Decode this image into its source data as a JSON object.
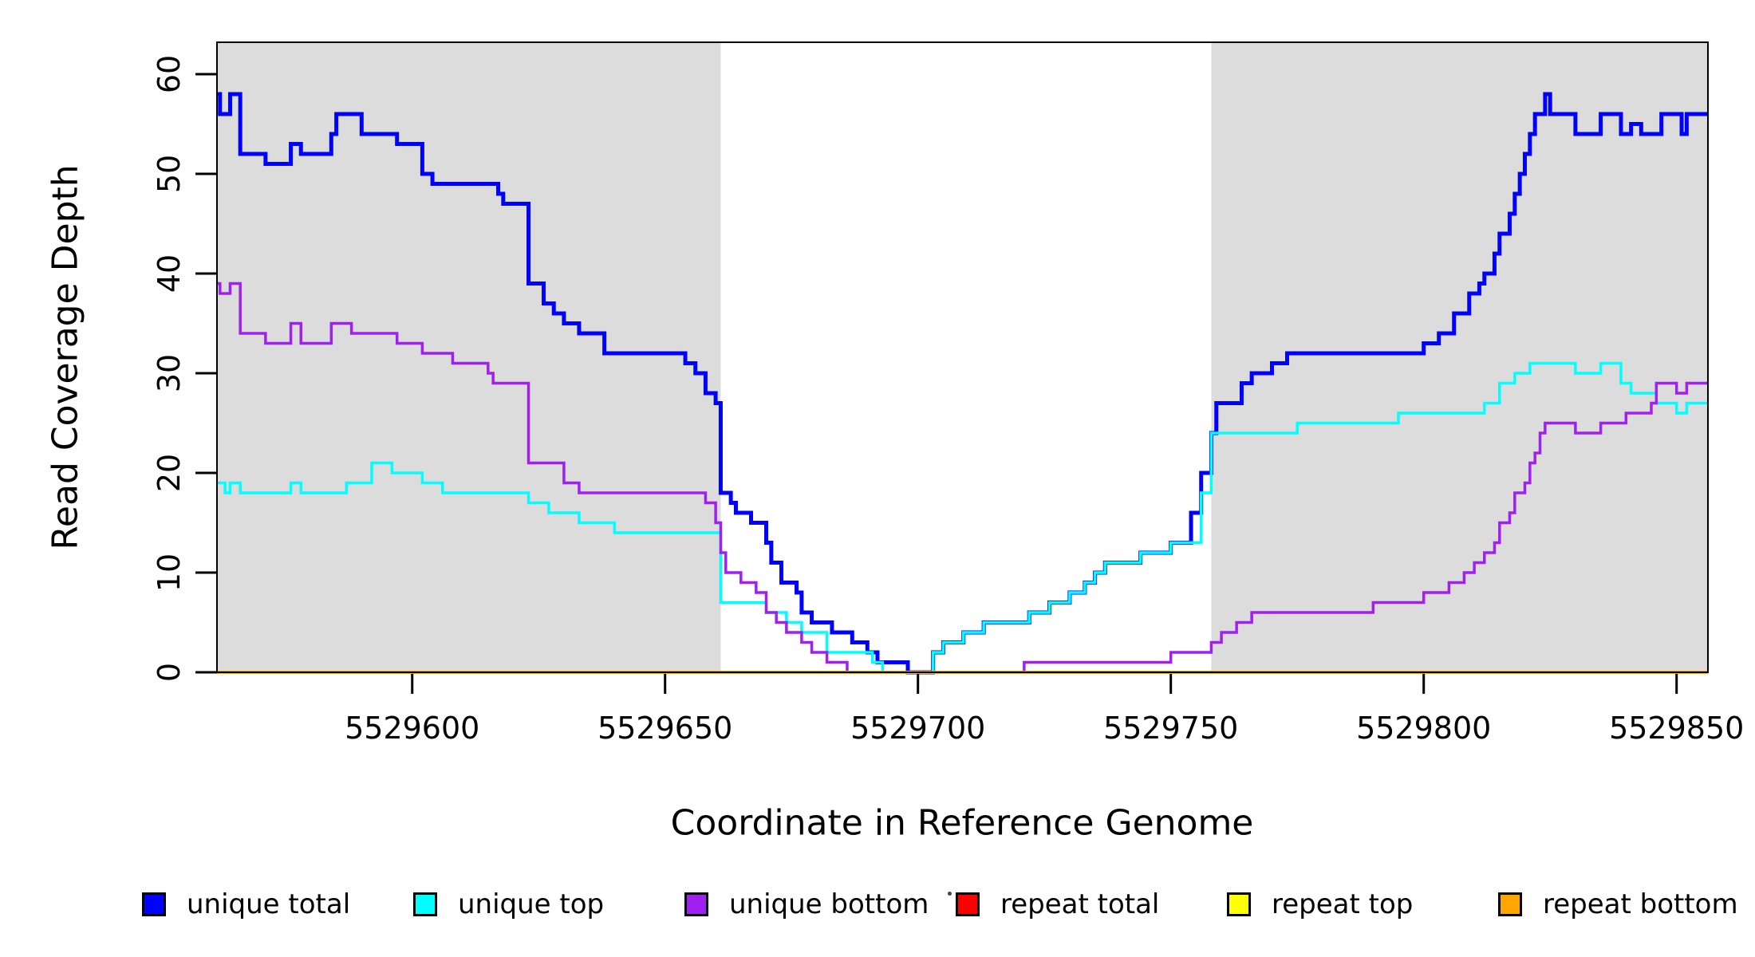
{
  "figure": {
    "background": "#FFFFFF",
    "highlight_color": "#DCDCDC",
    "axis_color": "#000000"
  },
  "chart_data": {
    "type": "line",
    "line_style": "step-after",
    "title": "",
    "xlabel": "Coordinate in Reference Genome",
    "ylabel": "Read Coverage Depth",
    "xlim": [
      5529561.4,
      5529856.2
    ],
    "ylim": [
      0,
      63.2
    ],
    "grid": false,
    "legend_position": "bottom-horizontal",
    "x_ticks": [
      {
        "value": 5529600,
        "label": "5529600"
      },
      {
        "value": 5529650,
        "label": "5529650"
      },
      {
        "value": 5529700,
        "label": "5529700"
      },
      {
        "value": 5529750,
        "label": "5529750"
      },
      {
        "value": 5529800,
        "label": "5529800"
      },
      {
        "value": 5529850,
        "label": "5529850"
      }
    ],
    "y_ticks": [
      {
        "value": 0,
        "label": "0"
      },
      {
        "value": 10,
        "label": "10"
      },
      {
        "value": 20,
        "label": "20"
      },
      {
        "value": 30,
        "label": "30"
      },
      {
        "value": 40,
        "label": "40"
      },
      {
        "value": 50,
        "label": "50"
      },
      {
        "value": 60,
        "label": "60"
      }
    ],
    "highlight_regions": [
      {
        "x0": 5529561.4,
        "x1": 5529661
      },
      {
        "x0": 5529758,
        "x1": 5529856.2
      }
    ],
    "series": [
      {
        "name": "unique total",
        "color": "#0000FF",
        "width": 5,
        "points": [
          [
            5529561,
            58
          ],
          [
            5529562,
            56
          ],
          [
            5529564,
            58
          ],
          [
            5529566,
            52
          ],
          [
            5529571,
            51
          ],
          [
            5529576,
            53
          ],
          [
            5529578,
            52
          ],
          [
            5529584,
            54
          ],
          [
            5529585,
            56
          ],
          [
            5529590,
            54
          ],
          [
            5529597,
            53
          ],
          [
            5529602,
            50
          ],
          [
            5529604,
            49
          ],
          [
            5529617,
            48
          ],
          [
            5529618,
            47
          ],
          [
            5529623,
            39
          ],
          [
            5529626,
            37
          ],
          [
            5529628,
            36
          ],
          [
            5529630,
            35
          ],
          [
            5529633,
            34
          ],
          [
            5529638,
            32
          ],
          [
            5529654,
            31
          ],
          [
            5529656,
            30
          ],
          [
            5529658,
            28
          ],
          [
            5529660,
            27
          ],
          [
            5529661,
            18
          ],
          [
            5529663,
            17
          ],
          [
            5529664,
            16
          ],
          [
            5529667,
            15
          ],
          [
            5529670,
            13
          ],
          [
            5529671,
            11
          ],
          [
            5529673,
            9
          ],
          [
            5529676,
            8
          ],
          [
            5529677,
            6
          ],
          [
            5529679,
            5
          ],
          [
            5529683,
            4
          ],
          [
            5529687,
            3
          ],
          [
            5529690,
            2
          ],
          [
            5529692,
            1
          ],
          [
            5529698,
            0
          ],
          [
            5529703,
            2
          ],
          [
            5529705,
            3
          ],
          [
            5529709,
            4
          ],
          [
            5529713,
            5
          ],
          [
            5529722,
            6
          ],
          [
            5529726,
            7
          ],
          [
            5529730,
            8
          ],
          [
            5529733,
            9
          ],
          [
            5529735,
            10
          ],
          [
            5529737,
            11
          ],
          [
            5529744,
            12
          ],
          [
            5529750,
            13
          ],
          [
            5529754,
            16
          ],
          [
            5529756,
            20
          ],
          [
            5529758,
            24
          ],
          [
            5529759,
            27
          ],
          [
            5529764,
            29
          ],
          [
            5529766,
            30
          ],
          [
            5529770,
            31
          ],
          [
            5529773,
            32
          ],
          [
            5529800,
            33
          ],
          [
            5529803,
            34
          ],
          [
            5529806,
            36
          ],
          [
            5529809,
            38
          ],
          [
            5529811,
            39
          ],
          [
            5529812,
            40
          ],
          [
            5529814,
            42
          ],
          [
            5529815,
            44
          ],
          [
            5529817,
            46
          ],
          [
            5529818,
            48
          ],
          [
            5529819,
            50
          ],
          [
            5529820,
            52
          ],
          [
            5529821,
            54
          ],
          [
            5529822,
            56
          ],
          [
            5529824,
            58
          ],
          [
            5529825,
            56
          ],
          [
            5529830,
            54
          ],
          [
            5529835,
            56
          ],
          [
            5529839,
            54
          ],
          [
            5529841,
            55
          ],
          [
            5529843,
            54
          ],
          [
            5529847,
            56
          ],
          [
            5529851,
            54
          ],
          [
            5529852,
            56
          ]
        ]
      },
      {
        "name": "unique top",
        "color": "#00FFFF",
        "width": 3.5,
        "points": [
          [
            5529561,
            19
          ],
          [
            5529563,
            18
          ],
          [
            5529564,
            19
          ],
          [
            5529566,
            18
          ],
          [
            5529576,
            19
          ],
          [
            5529578,
            18
          ],
          [
            5529587,
            19
          ],
          [
            5529592,
            21
          ],
          [
            5529596,
            20
          ],
          [
            5529602,
            19
          ],
          [
            5529606,
            18
          ],
          [
            5529623,
            17
          ],
          [
            5529627,
            16
          ],
          [
            5529633,
            15
          ],
          [
            5529640,
            14
          ],
          [
            5529661,
            7
          ],
          [
            5529670,
            6
          ],
          [
            5529674,
            5
          ],
          [
            5529677,
            4
          ],
          [
            5529682,
            2
          ],
          [
            5529691,
            1
          ],
          [
            5529693,
            0
          ],
          [
            5529703,
            2
          ],
          [
            5529705,
            3
          ],
          [
            5529709,
            4
          ],
          [
            5529713,
            5
          ],
          [
            5529722,
            6
          ],
          [
            5529726,
            7
          ],
          [
            5529730,
            8
          ],
          [
            5529733,
            9
          ],
          [
            5529735,
            10
          ],
          [
            5529737,
            11
          ],
          [
            5529744,
            12
          ],
          [
            5529750,
            13
          ],
          [
            5529756,
            18
          ],
          [
            5529758,
            24
          ],
          [
            5529775,
            25
          ],
          [
            5529795,
            26
          ],
          [
            5529812,
            27
          ],
          [
            5529815,
            29
          ],
          [
            5529818,
            30
          ],
          [
            5529821,
            31
          ],
          [
            5529830,
            30
          ],
          [
            5529835,
            31
          ],
          [
            5529839,
            29
          ],
          [
            5529841,
            28
          ],
          [
            5529846,
            27
          ],
          [
            5529850,
            26
          ],
          [
            5529852,
            27
          ]
        ]
      },
      {
        "name": "unique bottom",
        "color": "#A020F0",
        "width": 3.5,
        "points": [
          [
            5529561,
            39
          ],
          [
            5529562,
            38
          ],
          [
            5529564,
            39
          ],
          [
            5529566,
            34
          ],
          [
            5529571,
            33
          ],
          [
            5529576,
            35
          ],
          [
            5529578,
            33
          ],
          [
            5529584,
            35
          ],
          [
            5529588,
            34
          ],
          [
            5529597,
            33
          ],
          [
            5529602,
            32
          ],
          [
            5529608,
            31
          ],
          [
            5529615,
            30
          ],
          [
            5529616,
            29
          ],
          [
            5529623,
            21
          ],
          [
            5529630,
            19
          ],
          [
            5529633,
            18
          ],
          [
            5529658,
            17
          ],
          [
            5529660,
            15
          ],
          [
            5529661,
            12
          ],
          [
            5529662,
            10
          ],
          [
            5529665,
            9
          ],
          [
            5529668,
            8
          ],
          [
            5529670,
            6
          ],
          [
            5529672,
            5
          ],
          [
            5529674,
            4
          ],
          [
            5529677,
            3
          ],
          [
            5529679,
            2
          ],
          [
            5529682,
            1
          ],
          [
            5529686,
            0
          ],
          [
            5529721,
            1
          ],
          [
            5529750,
            2
          ],
          [
            5529758,
            3
          ],
          [
            5529760,
            4
          ],
          [
            5529763,
            5
          ],
          [
            5529766,
            6
          ],
          [
            5529790,
            7
          ],
          [
            5529800,
            8
          ],
          [
            5529805,
            9
          ],
          [
            5529808,
            10
          ],
          [
            5529810,
            11
          ],
          [
            5529812,
            12
          ],
          [
            5529814,
            13
          ],
          [
            5529815,
            15
          ],
          [
            5529817,
            16
          ],
          [
            5529818,
            18
          ],
          [
            5529820,
            19
          ],
          [
            5529821,
            21
          ],
          [
            5529822,
            22
          ],
          [
            5529823,
            24
          ],
          [
            5529824,
            25
          ],
          [
            5529830,
            24
          ],
          [
            5529835,
            25
          ],
          [
            5529840,
            26
          ],
          [
            5529845,
            27
          ],
          [
            5529846,
            29
          ],
          [
            5529850,
            28
          ],
          [
            5529852,
            29
          ]
        ]
      },
      {
        "name": "repeat total",
        "color": "#FF0000",
        "width": 3,
        "points": [
          [
            5529561,
            0
          ]
        ]
      },
      {
        "name": "repeat top",
        "color": "#FFFF00",
        "width": 3,
        "points": [
          [
            5529561,
            0
          ]
        ]
      },
      {
        "name": "repeat bottom",
        "color": "#FFA500",
        "width": 4,
        "points": [
          [
            5529561,
            0
          ]
        ]
      }
    ]
  },
  "legend": {
    "items": [
      {
        "label": "unique total",
        "color": "#0000FF"
      },
      {
        "label": "unique top",
        "color": "#00FFFF"
      },
      {
        "label": "unique bottom",
        "color": "#A020F0"
      },
      {
        "label": "repeat total",
        "color": "#FF0000"
      },
      {
        "label": "repeat top",
        "color": "#FFFF00"
      },
      {
        "label": "repeat bottom",
        "color": "#FFA500"
      }
    ]
  }
}
